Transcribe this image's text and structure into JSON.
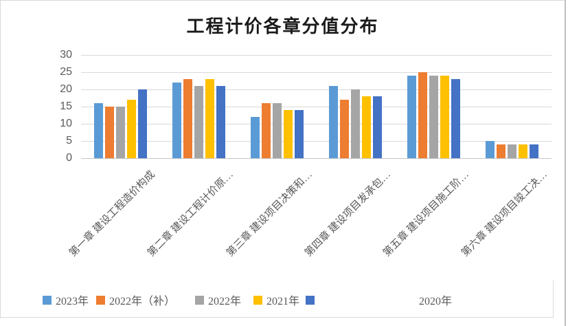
{
  "chart_data": {
    "type": "bar",
    "title": "工程计价各章分值分布",
    "categories": [
      "第一章 建设工程造价构成",
      "第二章 建设工程计价原…",
      "第三章 建设项目决策和…",
      "第四章 建设项目发承包…",
      "第五章 建设项目施工阶…",
      "第六章 建设项目竣工决…"
    ],
    "series": [
      {
        "name": "2023年",
        "color": "#5B9BD5",
        "values": [
          16,
          22,
          12,
          21,
          24,
          5
        ]
      },
      {
        "name": "2022年（补）",
        "color": "#ED7D31",
        "values": [
          15,
          23,
          16,
          17,
          25,
          4
        ]
      },
      {
        "name": "2022年",
        "color": "#A5A5A5",
        "values": [
          15,
          21,
          16,
          20,
          24,
          4
        ]
      },
      {
        "name": "2021年",
        "color": "#FFC000",
        "values": [
          17,
          23,
          14,
          18,
          24,
          4
        ]
      },
      {
        "name": "2020年",
        "color": "#4472C4",
        "values": [
          20,
          21,
          14,
          18,
          23,
          4
        ]
      }
    ],
    "ylim": [
      0,
      30
    ],
    "ytick_interval": 5,
    "yticks": [
      "30",
      "25",
      "20",
      "15",
      "10",
      "5",
      "0"
    ],
    "grid": true,
    "legend_position": "bottom"
  }
}
